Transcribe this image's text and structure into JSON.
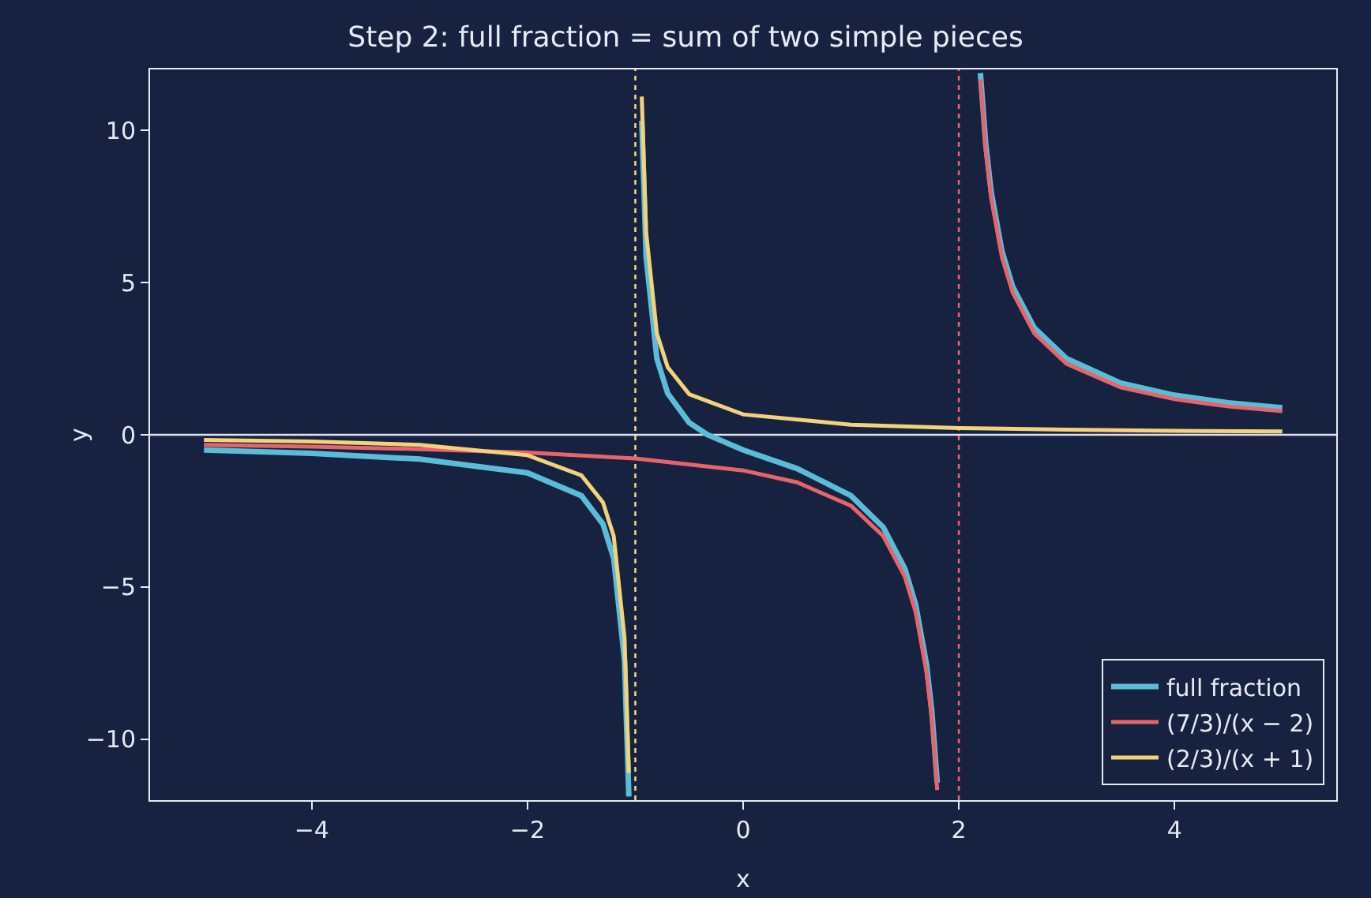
{
  "chart_data": {
    "type": "line",
    "title": "Step 2: full fraction = sum of two simple pieces",
    "xlabel": "x",
    "ylabel": "y",
    "xlim": [
      -5.5,
      5.5
    ],
    "ylim": [
      -12,
      12
    ],
    "xticks": [
      {
        "value": -4,
        "label": "−4"
      },
      {
        "value": -2,
        "label": "−2"
      },
      0,
      2,
      4
    ],
    "yticks": [
      {
        "value": -10,
        "label": "−10"
      },
      {
        "value": -5,
        "label": "−5"
      },
      0,
      5,
      10
    ],
    "grid": false,
    "legend": "bottom right",
    "line_style": "solid",
    "marker": "none",
    "series": [
      {
        "name": "full fraction",
        "color": "#5bbcd8",
        "x": [
          -5,
          -4,
          -3,
          -2,
          -1.5,
          -1.3,
          -1.2,
          -1.1,
          -1.06,
          -1,
          -0.94,
          -0.9,
          -0.8,
          -0.7,
          -0.5,
          -0.33,
          0,
          0.5,
          1,
          1.3,
          1.5,
          1.6,
          1.7,
          1.75,
          1.8,
          2,
          2.2,
          2.25,
          2.3,
          2.4,
          2.5,
          2.7,
          3,
          3.5,
          4,
          4.5,
          5
        ],
        "values": [
          -0.5,
          -0.61,
          -0.8,
          -1.25,
          -2.0,
          -2.93,
          -4.06,
          -7.42,
          -11.88,
          null,
          10.32,
          5.86,
          2.5,
          1.36,
          0.4,
          0,
          -0.5,
          -1.11,
          -2.0,
          -3.04,
          -4.4,
          -5.58,
          -7.53,
          -9.09,
          -11.43,
          null,
          11.88,
          9.54,
          7.98,
          6.03,
          4.86,
          3.51,
          2.5,
          1.7,
          1.3,
          1.05,
          0.89
        ]
      },
      {
        "name": "(7/3)/(x − 2)",
        "color": "#e8646c",
        "x": [
          -5,
          -4,
          -3,
          -2,
          -1,
          0,
          0.5,
          1,
          1.3,
          1.5,
          1.6,
          1.7,
          1.75,
          1.8,
          2,
          2.2,
          2.25,
          2.3,
          2.4,
          2.5,
          2.7,
          3,
          3.5,
          4,
          4.5,
          5
        ],
        "values": [
          -0.33,
          -0.39,
          -0.47,
          -0.58,
          -0.78,
          -1.17,
          -1.56,
          -2.33,
          -3.33,
          -4.67,
          -5.83,
          -7.78,
          -9.33,
          -11.67,
          null,
          11.67,
          9.33,
          7.78,
          5.83,
          4.67,
          3.33,
          2.33,
          1.56,
          1.17,
          0.93,
          0.78
        ]
      },
      {
        "name": "(2/3)/(x + 1)",
        "color": "#f2d27a",
        "x": [
          -5,
          -4,
          -3,
          -2,
          -1.5,
          -1.3,
          -1.2,
          -1.1,
          -1.06,
          -1,
          -0.94,
          -0.9,
          -0.8,
          -0.7,
          -0.5,
          0,
          1,
          2,
          3,
          4,
          5
        ],
        "values": [
          -0.17,
          -0.22,
          -0.33,
          -0.67,
          -1.33,
          -2.22,
          -3.33,
          -6.67,
          -11.11,
          null,
          11.11,
          6.67,
          3.33,
          2.22,
          1.33,
          0.67,
          0.33,
          0.22,
          0.17,
          0.13,
          0.11
        ]
      }
    ],
    "ref_lines": [
      {
        "axis": "x",
        "value": -1,
        "color": "#f2d27a",
        "line_style": "dotted"
      },
      {
        "axis": "x",
        "value": 2,
        "color": "#e8646c",
        "line_style": "dotted"
      },
      {
        "axis": "y",
        "value": 0,
        "color": "#dde3ee",
        "line_style": "solid"
      }
    ]
  }
}
